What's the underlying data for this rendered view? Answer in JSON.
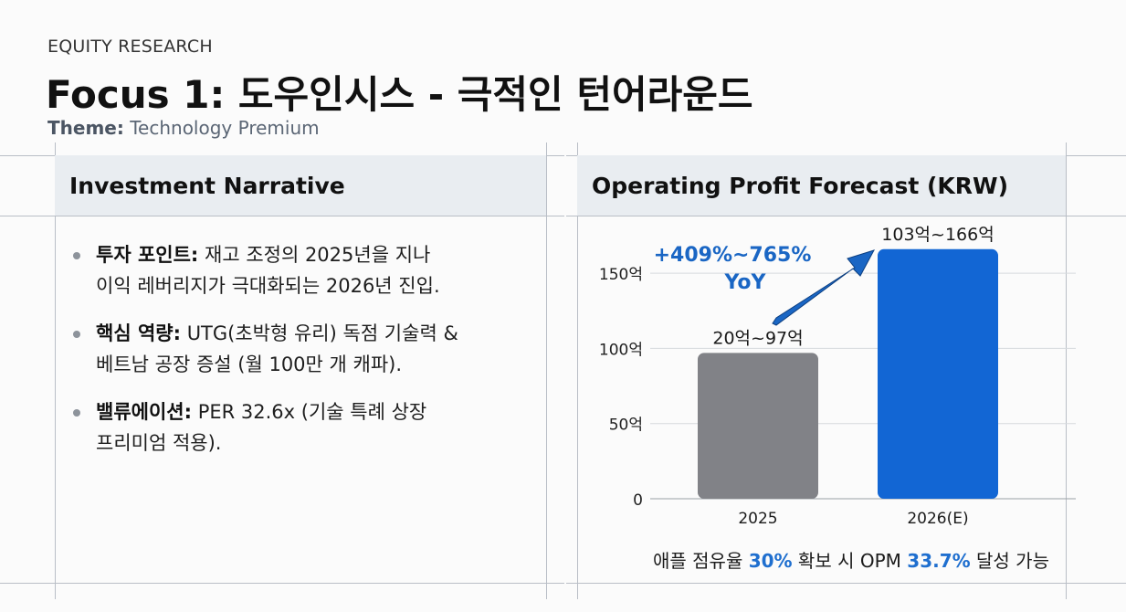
{
  "header": {
    "eyebrow": "EQUITY RESEARCH",
    "title": "Focus 1: 도우인시스 - 극적인 턴어라운드",
    "theme_label": "Theme:",
    "theme_value": "Technology Premium"
  },
  "left_panel": {
    "heading": "Investment Narrative",
    "bullets": [
      {
        "label": "투자 포인트:",
        "text": "재고 조정의 2025년을 지나",
        "text2": "이익 레버리지가 극대화되는 2026년 진입."
      },
      {
        "label": "핵심 역량:",
        "text": "UTG(초박형 유리) 독점 기술력 &",
        "text2": "베트남 공장 증설 (월 100만 개 캐파)."
      },
      {
        "label": "밸류에이션:",
        "text": "PER 32.6x (기술 특례 상장",
        "text2": "프리미엄 적용)."
      }
    ]
  },
  "right_panel": {
    "heading": "Operating Profit Forecast (KRW)",
    "footnote": {
      "pre": "애플 점유율 ",
      "v1": "30%",
      "mid": " 확보 시 OPM ",
      "v2": "33.7%",
      "post": " 달성 가능"
    }
  },
  "chart_data": {
    "type": "bar",
    "categories": [
      "2025",
      "2026(E)"
    ],
    "values": [
      97,
      166
    ],
    "range_lows": [
      20,
      103
    ],
    "data_labels": [
      "20억~97억",
      "103억~166억"
    ],
    "y_ticks": [
      0,
      50,
      100,
      150
    ],
    "y_tick_labels": [
      "0",
      "50억",
      "100억",
      "150억"
    ],
    "ylim": [
      0,
      175
    ],
    "colors": [
      "#818287",
      "#1266d4"
    ],
    "annotation": {
      "line1": "+409%~765%",
      "line2": "YoY",
      "color": "#1a66c4"
    },
    "grid": true
  }
}
